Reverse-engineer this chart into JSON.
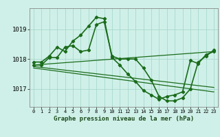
{
  "title": "Graphe pression niveau de la mer (hPa)",
  "bg_color": "#cff0e8",
  "plot_bg_color": "#cff0e8",
  "grid_color": "#a8d8cc",
  "line_color": "#1a6b1a",
  "xlim": [
    -0.5,
    23.5
  ],
  "ylim": [
    1016.4,
    1019.7
  ],
  "yticks": [
    1017,
    1018,
    1019
  ],
  "xticks": [
    0,
    1,
    2,
    3,
    4,
    5,
    6,
    7,
    8,
    9,
    10,
    11,
    12,
    13,
    14,
    15,
    16,
    17,
    18,
    19,
    20,
    21,
    22,
    23
  ],
  "series": [
    {
      "x": [
        0,
        1,
        2,
        3,
        4,
        5,
        6,
        7,
        8,
        9,
        10,
        11,
        12,
        13,
        14,
        15,
        16,
        17,
        18,
        19,
        20,
        21,
        22,
        23
      ],
      "y": [
        1017.9,
        1017.9,
        1018.1,
        1018.4,
        1018.25,
        1018.6,
        1018.8,
        1019.1,
        1019.4,
        1019.35,
        1018.05,
        1017.8,
        1017.5,
        1017.25,
        1016.95,
        1016.8,
        1016.65,
        1016.75,
        1016.8,
        1016.9,
        1017.95,
        1017.85,
        1018.15,
        1018.25
      ],
      "marker": true,
      "linewidth": 1.2
    },
    {
      "x": [
        0,
        1,
        2,
        3,
        4,
        5,
        6,
        7,
        8,
        9,
        10,
        11,
        12,
        13,
        14,
        15,
        16,
        17,
        18,
        19,
        20,
        21,
        22,
        23
      ],
      "y": [
        1017.8,
        1017.8,
        1018.05,
        1018.05,
        1018.4,
        1018.45,
        1018.25,
        1018.3,
        1019.15,
        1019.25,
        1018.1,
        1018.0,
        1018.0,
        1018.0,
        1017.7,
        1017.3,
        1016.75,
        1016.6,
        1016.6,
        1016.7,
        1017.0,
        1017.9,
        1018.1,
        1018.3
      ],
      "marker": true,
      "linewidth": 1.2
    },
    {
      "x": [
        0,
        23
      ],
      "y": [
        1017.8,
        1018.25
      ],
      "marker": false,
      "linewidth": 0.9
    },
    {
      "x": [
        0,
        23
      ],
      "y": [
        1017.75,
        1017.05
      ],
      "marker": false,
      "linewidth": 0.9
    },
    {
      "x": [
        0,
        23
      ],
      "y": [
        1017.7,
        1016.9
      ],
      "marker": false,
      "linewidth": 0.9
    }
  ]
}
